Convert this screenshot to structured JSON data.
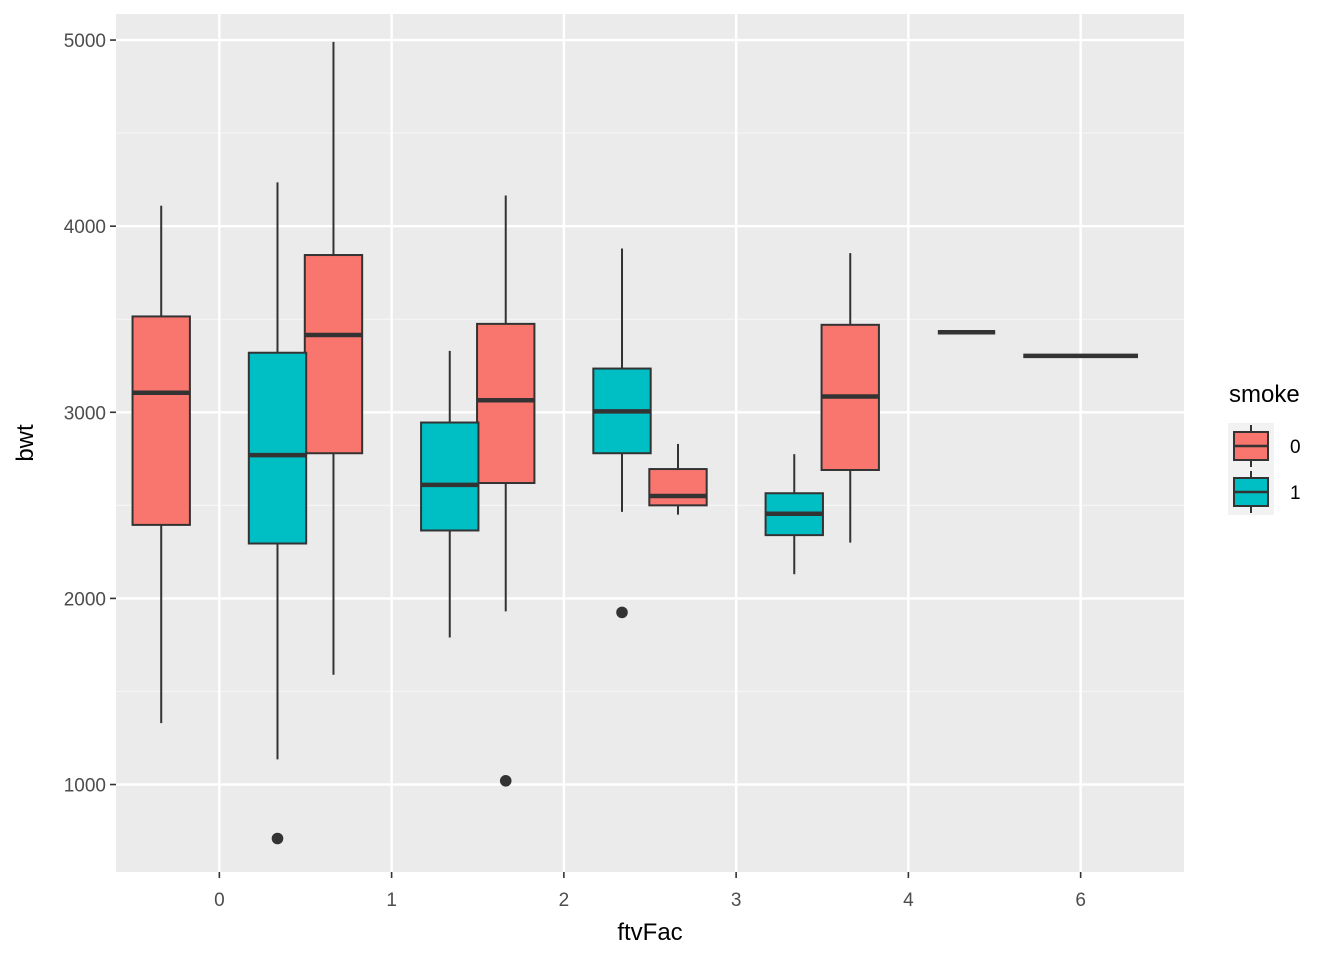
{
  "chart_data": {
    "type": "boxplot",
    "xlabel": "ftvFac",
    "ylabel": "bwt",
    "categories": [
      "0",
      "1",
      "2",
      "3",
      "4",
      "6"
    ],
    "ylim": [
      530,
      5140
    ],
    "yticks": [
      1000,
      2000,
      3000,
      4000,
      5000
    ],
    "grid": true,
    "legend": {
      "title": "smoke",
      "placement": "right",
      "entries": [
        {
          "label": "0",
          "color": "#F8766D"
        },
        {
          "label": "1",
          "color": "#00BFC4"
        }
      ]
    },
    "series": [
      {
        "name": "0",
        "color": "#F8766D",
        "boxes": [
          {
            "category": "0",
            "whisker_low": 1330,
            "q1": 2395,
            "median": 3105,
            "q3": 3515,
            "whisker_high": 4110,
            "outliers": []
          },
          {
            "category": "1",
            "whisker_low": 1590,
            "q1": 2780,
            "median": 3415,
            "q3": 3845,
            "whisker_high": 4990,
            "outliers": []
          },
          {
            "category": "2",
            "whisker_low": 1930,
            "q1": 2620,
            "median": 3065,
            "q3": 3475,
            "whisker_high": 4165,
            "outliers": [
              1020
            ]
          },
          {
            "category": "3",
            "whisker_low": 2450,
            "q1": 2500,
            "median": 2550,
            "q3": 2695,
            "whisker_high": 2830,
            "outliers": []
          },
          {
            "category": "4",
            "whisker_low": 2300,
            "q1": 2690,
            "median": 3085,
            "q3": 3470,
            "whisker_high": 3855,
            "outliers": []
          },
          {
            "category": "6",
            "whisker_low": 3303,
            "q1": 3303,
            "median": 3303,
            "q3": 3303,
            "whisker_high": 3303,
            "outliers": []
          }
        ]
      },
      {
        "name": "1",
        "color": "#00BFC4",
        "boxes": [
          {
            "category": "0",
            "whisker_low": 1135,
            "q1": 2295,
            "median": 2770,
            "q3": 3320,
            "whisker_high": 4235,
            "outliers": [
              710
            ]
          },
          {
            "category": "1",
            "whisker_low": 1790,
            "q1": 2365,
            "median": 2610,
            "q3": 2945,
            "whisker_high": 3330,
            "outliers": []
          },
          {
            "category": "2",
            "whisker_low": 2465,
            "q1": 2780,
            "median": 3005,
            "q3": 3235,
            "whisker_high": 3880,
            "outliers": [
              1925
            ]
          },
          {
            "category": "3",
            "whisker_low": 2130,
            "q1": 2340,
            "median": 2455,
            "q3": 2565,
            "whisker_high": 2775,
            "outliers": []
          },
          {
            "category": "4",
            "whisker_low": 3430,
            "q1": 3430,
            "median": 3430,
            "q3": 3430,
            "whisker_high": 3430,
            "outliers": []
          }
        ]
      }
    ]
  }
}
